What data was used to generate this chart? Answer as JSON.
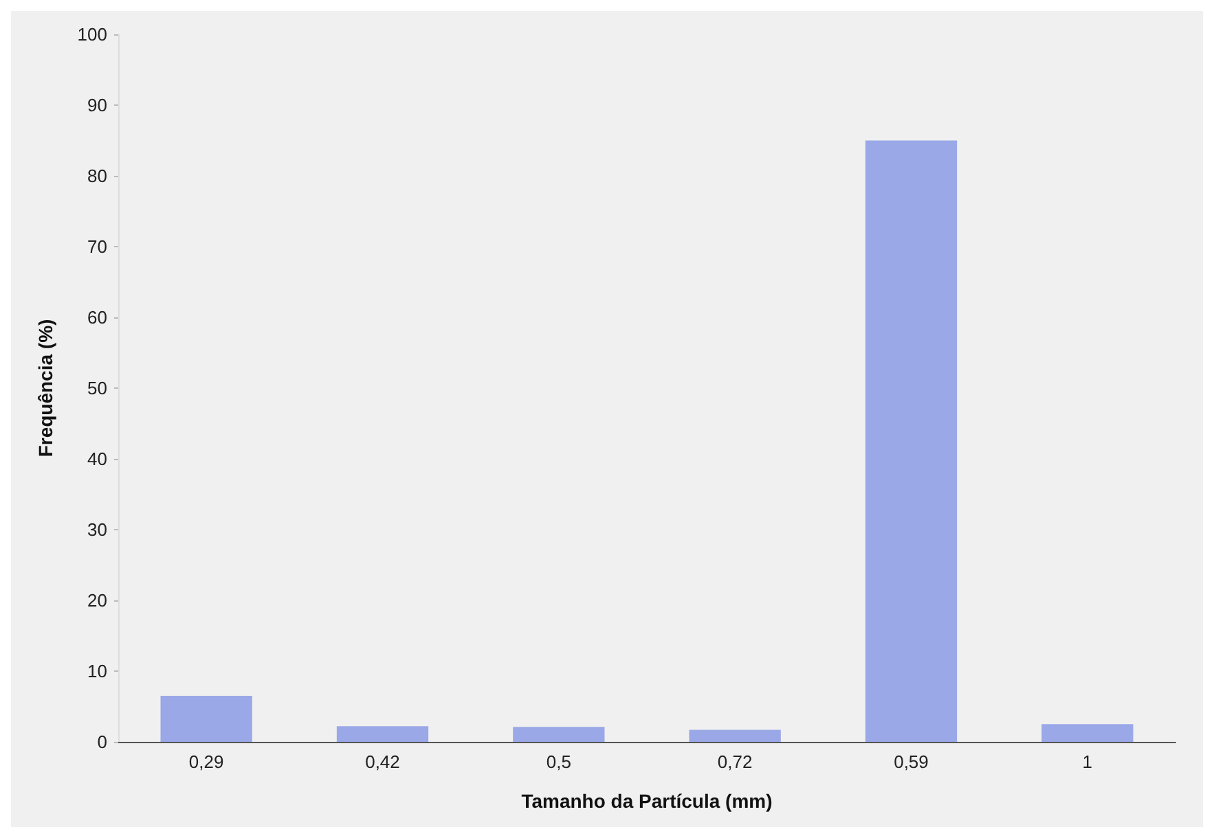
{
  "chart_data": {
    "type": "bar",
    "xlabel": "Tamanho da Partícula (mm)",
    "ylabel": "Frequência (%)",
    "categories": [
      "0,29",
      "0,42",
      "0,5",
      "0,72",
      "0,59",
      "1"
    ],
    "values": [
      6.5,
      2.2,
      2.1,
      1.7,
      85,
      2.5
    ],
    "color": "#9aa8e8",
    "ylim": [
      0,
      100
    ],
    "yticks": [
      0,
      10,
      20,
      30,
      40,
      50,
      60,
      70,
      80,
      90,
      100
    ],
    "grid": false
  }
}
